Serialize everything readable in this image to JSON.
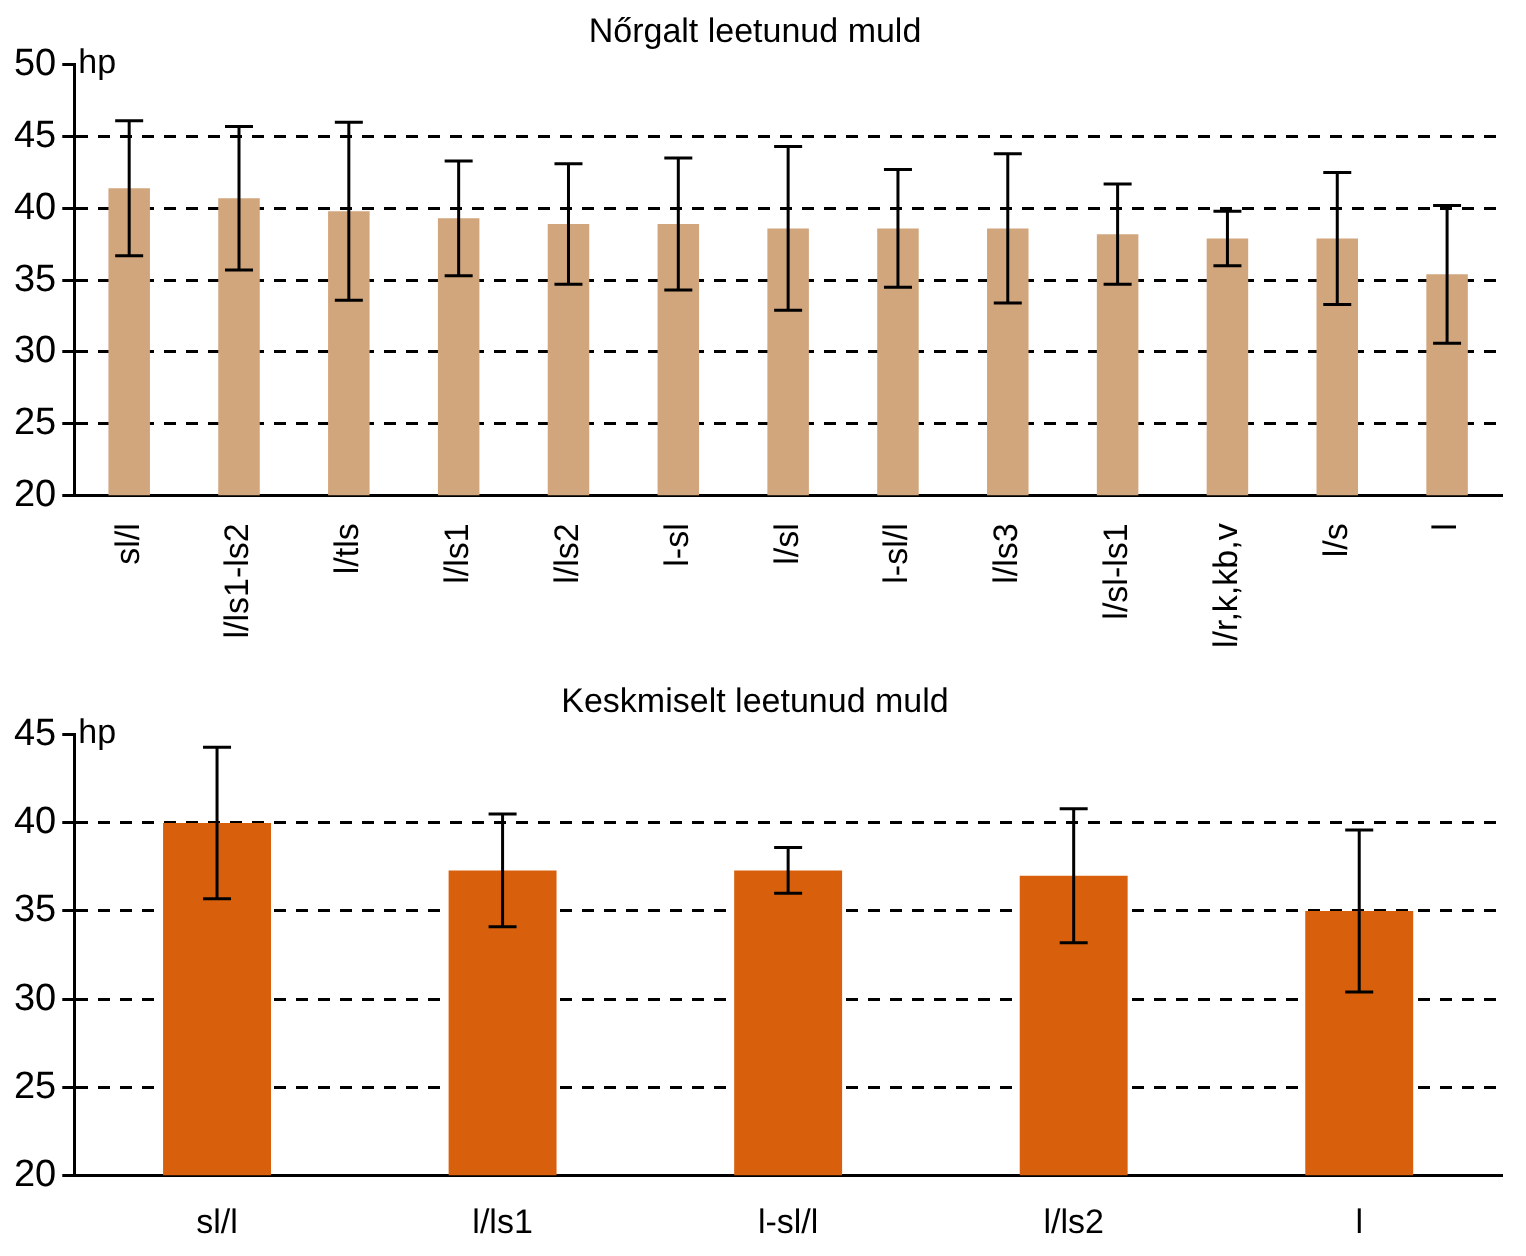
{
  "chart_data": [
    {
      "type": "bar",
      "title": "Nőrgalt leetunud muld",
      "ylabel": "hp",
      "categories": [
        "sl/l",
        "l/ls1-ls2",
        "l/tls",
        "l/ls1",
        "l/ls2",
        "l-sl",
        "l/sl",
        "l-sl/l",
        "l/ls3",
        "l/sl-ls1",
        "l/r,k,kb,v",
        "l/s",
        "l"
      ],
      "values": [
        41.4,
        40.7,
        39.8,
        39.3,
        38.9,
        38.9,
        38.6,
        38.6,
        38.6,
        38.2,
        37.9,
        37.9,
        35.4
      ],
      "errors": [
        4.7,
        5.0,
        6.2,
        4.0,
        4.2,
        4.6,
        5.7,
        4.1,
        5.2,
        3.5,
        1.9,
        4.6,
        4.8
      ],
      "color": "#d2a67c",
      "ylim": [
        20,
        50
      ],
      "yticks": [
        20,
        25,
        30,
        35,
        40,
        45,
        50
      ],
      "grid": "y"
    },
    {
      "type": "bar",
      "title": "Keskmiselt leetunud muld",
      "ylabel": "hp",
      "categories": [
        "sl/l",
        "l/ls1",
        "l-sl/l",
        "l/ls2",
        "l"
      ],
      "values": [
        40.0,
        37.3,
        37.3,
        37.0,
        35.0
      ],
      "errors": [
        4.3,
        3.2,
        1.3,
        3.8,
        4.6
      ],
      "color": "#d8600c",
      "ylim": [
        20,
        45
      ],
      "yticks": [
        20,
        25,
        30,
        35,
        40,
        45
      ],
      "grid": "y"
    }
  ]
}
